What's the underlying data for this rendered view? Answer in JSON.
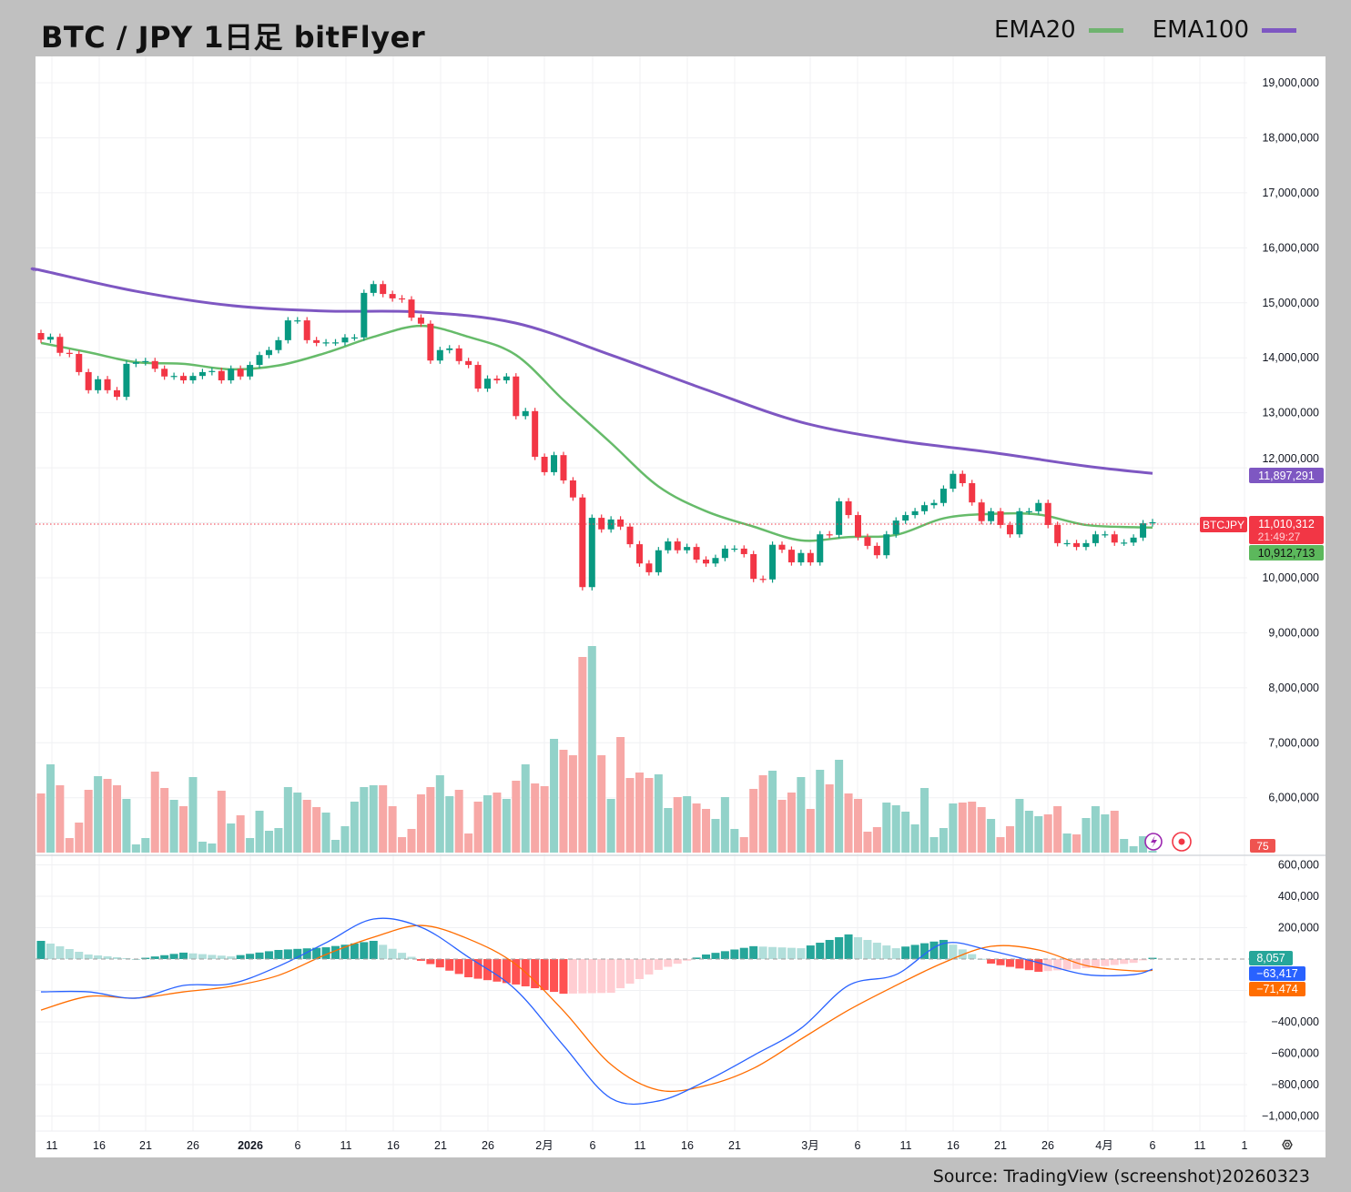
{
  "header": {
    "title": "BTC / JPY 1日足 bitFlyer"
  },
  "legend": [
    {
      "label": "EMA20",
      "color": "#6fb36f"
    },
    {
      "label": "EMA100",
      "color": "#7e57c2"
    }
  ],
  "footer": {
    "source": "Source: TradingView (screenshot)20260323"
  },
  "colors": {
    "up": "#089981",
    "down": "#f23645",
    "vol_up": "#92d2c9",
    "vol_down": "#f7a8a6",
    "ema20": "#66bb6a",
    "ema100": "#7e57c2",
    "macd": "#2962ff",
    "signal": "#ff6d00",
    "hist_up_strong": "#26a69a",
    "hist_up_weak": "#b2dfdb",
    "hist_down_strong": "#ff5252",
    "hist_down_weak": "#ffcdd2"
  },
  "badges": {
    "ema100_value": "11,897,291",
    "symbol": "BTCJPY",
    "last_price": "11,010,312",
    "countdown": "21:49:27",
    "ema20_value": "10,912,713",
    "volume_value": "75",
    "hist_value": "8,057",
    "macd_value": "−63,417",
    "signal_value": "−71,474"
  },
  "icons": {
    "alert": "lightning-icon",
    "record": "record-icon",
    "settings": "gear-icon"
  },
  "chart_data": {
    "type": "candlestick",
    "price_axis": {
      "labels": [
        "19,000,000",
        "18,000,000",
        "17,000,000",
        "16,000,000",
        "15,000,000",
        "14,000,000",
        "13,000,000",
        "12,000,000",
        "10,000,000",
        "9,000,000",
        "8,000,000",
        "7,000,000",
        "6,000,000"
      ],
      "values": [
        19000000,
        18000000,
        17000000,
        16000000,
        15000000,
        14000000,
        13000000,
        12000000,
        10000000,
        9000000,
        8000000,
        7000000,
        6000000
      ]
    },
    "x_axis": {
      "labels": [
        "11",
        "16",
        "21",
        "26",
        "2026",
        "6",
        "11",
        "16",
        "21",
        "26",
        "2月",
        "6",
        "11",
        "16",
        "21",
        "3月",
        "6",
        "11",
        "16",
        "21",
        "26",
        "4月",
        "6",
        "11",
        "1"
      ]
    },
    "first_open": 14450000,
    "close": [
      14330000,
      14380000,
      14090000,
      14070000,
      13740000,
      13410000,
      13610000,
      13410000,
      13290000,
      13890000,
      13920000,
      13940000,
      13800000,
      13660000,
      13670000,
      13590000,
      13670000,
      13740000,
      13760000,
      13590000,
      13800000,
      13660000,
      13870000,
      14050000,
      14140000,
      14320000,
      14680000,
      14680000,
      14320000,
      14270000,
      14280000,
      14280000,
      14370000,
      14370000,
      15180000,
      15340000,
      15160000,
      15080000,
      15060000,
      14730000,
      14620000,
      13950000,
      14140000,
      14170000,
      13940000,
      13870000,
      13440000,
      13620000,
      13590000,
      13660000,
      12940000,
      13030000,
      12200000,
      11920000,
      12230000,
      11770000,
      11460000,
      9830000,
      11090000,
      10880000,
      11060000,
      10930000,
      10610000,
      10260000,
      10100000,
      10500000,
      10660000,
      10500000,
      10560000,
      10330000,
      10260000,
      10360000,
      10530000,
      10530000,
      10430000,
      9980000,
      9970000,
      10600000,
      10510000,
      10280000,
      10450000,
      10280000,
      10790000,
      10780000,
      11390000,
      11140000,
      10740000,
      10580000,
      10410000,
      10790000,
      11040000,
      11140000,
      11210000,
      11320000,
      11360000,
      11620000,
      11890000,
      11720000,
      11370000,
      11030000,
      11210000,
      10960000,
      10790000,
      11210000,
      11210000,
      11360000,
      10960000,
      10630000,
      10630000,
      10560000,
      10630000,
      10790000,
      10790000,
      10640000,
      10640000,
      10730000,
      10990000,
      11010312
    ],
    "volume_relative": [
      65,
      97,
      74,
      16,
      33,
      69,
      84,
      81,
      74,
      59,
      9,
      16,
      89,
      71,
      58,
      51,
      83,
      12,
      10,
      68,
      32,
      41,
      16,
      46,
      24,
      27,
      72,
      66,
      58,
      50,
      44,
      14,
      29,
      56,
      72,
      74,
      74,
      51,
      17,
      26,
      64,
      72,
      85,
      62,
      69,
      21,
      56,
      63,
      66,
      59,
      79,
      97,
      76,
      73,
      125,
      113,
      107,
      215,
      227,
      107,
      59,
      127,
      82,
      88,
      82,
      86,
      49,
      61,
      62,
      54,
      48,
      37,
      61,
      26,
      17,
      70,
      85,
      90,
      58,
      66,
      83,
      48,
      91,
      75,
      102,
      65,
      59,
      23,
      28,
      55,
      52,
      45,
      31,
      71,
      17,
      27,
      54,
      55,
      56,
      50,
      37,
      17,
      29,
      59,
      46,
      40,
      42,
      51,
      21,
      20,
      38,
      51,
      42,
      46,
      15,
      7,
      18,
      2
    ],
    "ema20": [
      [
        0,
        14270000
      ],
      [
        5,
        14100000
      ],
      [
        10,
        13920000
      ],
      [
        15,
        13890000
      ],
      [
        20,
        13790000
      ],
      [
        25,
        13860000
      ],
      [
        30,
        14090000
      ],
      [
        35,
        14380000
      ],
      [
        40,
        14580000
      ],
      [
        45,
        14380000
      ],
      [
        50,
        14050000
      ],
      [
        55,
        13230000
      ],
      [
        60,
        12450000
      ],
      [
        65,
        11660000
      ],
      [
        70,
        11210000
      ],
      [
        75,
        10930000
      ],
      [
        80,
        10680000
      ],
      [
        85,
        10740000
      ],
      [
        90,
        10780000
      ],
      [
        95,
        11080000
      ],
      [
        100,
        11160000
      ],
      [
        105,
        11150000
      ],
      [
        110,
        10960000
      ],
      [
        115,
        10920000
      ],
      [
        117,
        10912713
      ]
    ],
    "ema100": [
      [
        0,
        15590000
      ],
      [
        10,
        15210000
      ],
      [
        20,
        14950000
      ],
      [
        30,
        14850000
      ],
      [
        40,
        14830000
      ],
      [
        50,
        14630000
      ],
      [
        60,
        14050000
      ],
      [
        70,
        13420000
      ],
      [
        80,
        12830000
      ],
      [
        90,
        12500000
      ],
      [
        100,
        12280000
      ],
      [
        110,
        12030000
      ],
      [
        117,
        11897291
      ]
    ],
    "macd_axis": {
      "labels": [
        "600,000",
        "400,000",
        "200,000",
        "−400,000",
        "−600,000",
        "−800,000",
        "−1,000,000"
      ],
      "values": [
        600000,
        400000,
        200000,
        -400000,
        -600000,
        -800000,
        -1000000
      ]
    },
    "macd": [
      [
        0,
        -209000
      ],
      [
        5,
        -209000
      ],
      [
        10,
        -249000
      ],
      [
        15,
        -168000
      ],
      [
        20,
        -157000
      ],
      [
        25,
        -46000
      ],
      [
        30,
        104000
      ],
      [
        35,
        255000
      ],
      [
        40,
        203000
      ],
      [
        45,
        12000
      ],
      [
        50,
        -197000
      ],
      [
        55,
        -551000
      ],
      [
        60,
        -887000
      ],
      [
        65,
        -904000
      ],
      [
        70,
        -777000
      ],
      [
        75,
        -614000
      ],
      [
        80,
        -441000
      ],
      [
        85,
        -168000
      ],
      [
        90,
        -99000
      ],
      [
        95,
        99000
      ],
      [
        100,
        52000
      ],
      [
        105,
        -23000
      ],
      [
        110,
        -99000
      ],
      [
        115,
        -99000
      ],
      [
        117,
        -63417
      ]
    ],
    "signal": [
      [
        0,
        -325000
      ],
      [
        5,
        -238000
      ],
      [
        10,
        -249000
      ],
      [
        15,
        -209000
      ],
      [
        20,
        -174000
      ],
      [
        25,
        -104000
      ],
      [
        30,
        29000
      ],
      [
        35,
        139000
      ],
      [
        40,
        214000
      ],
      [
        45,
        128000
      ],
      [
        50,
        -35000
      ],
      [
        55,
        -330000
      ],
      [
        60,
        -672000
      ],
      [
        65,
        -835000
      ],
      [
        70,
        -806000
      ],
      [
        75,
        -696000
      ],
      [
        80,
        -510000
      ],
      [
        85,
        -325000
      ],
      [
        90,
        -168000
      ],
      [
        95,
        -23000
      ],
      [
        100,
        81000
      ],
      [
        105,
        58000
      ],
      [
        110,
        -41000
      ],
      [
        115,
        -75000
      ],
      [
        117,
        -71474
      ]
    ],
    "grid": true
  }
}
